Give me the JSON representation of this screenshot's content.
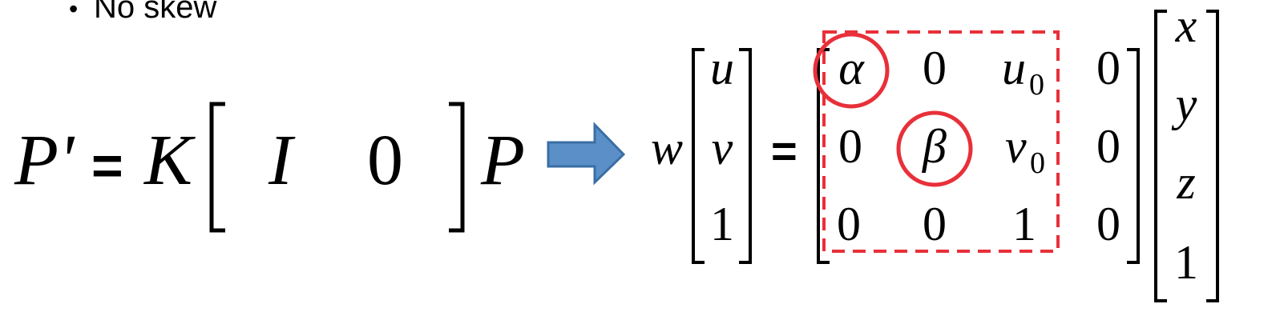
{
  "bullet": {
    "marker": "•",
    "text": "No skew"
  },
  "equation_left": {
    "p_prime": "P'",
    "equals": "=",
    "k": "K",
    "identity": "I",
    "zero": "0",
    "p": "P"
  },
  "equation_right": {
    "w": "w",
    "uv1": [
      "u",
      "v",
      "1"
    ],
    "equals": "=",
    "K_rows": [
      [
        "α",
        "0",
        "u",
        "0"
      ],
      [
        "0",
        "β",
        "v",
        "0"
      ],
      [
        "0",
        "0",
        "1",
        "0"
      ]
    ],
    "u0_subscript": "0",
    "v0_subscript": "0",
    "xyz1": [
      "x",
      "y",
      "z",
      "1"
    ]
  },
  "colors": {
    "text": "#000000",
    "highlight_red": "#e8303a",
    "arrow_fill": "#5b8fc7",
    "arrow_stroke": "#3a6ea5"
  },
  "icons": {
    "arrow": "right-arrow-icon"
  }
}
